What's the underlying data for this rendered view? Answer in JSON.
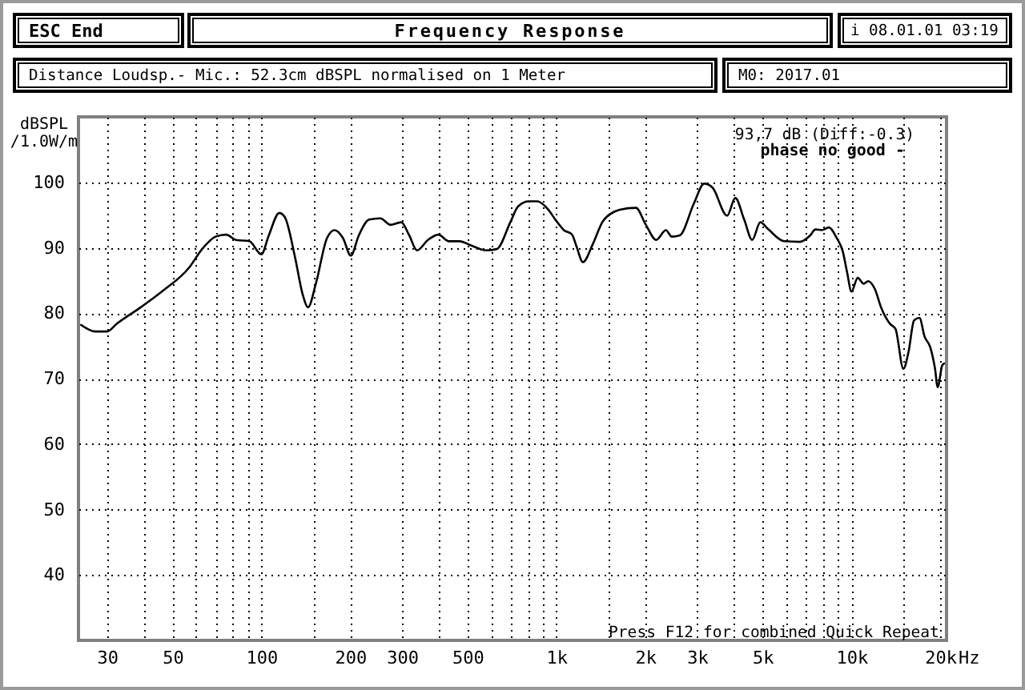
{
  "chart_data": {
    "type": "line",
    "title": "Frequency Response",
    "subtitle": "Distance Loudsp.- Mic.: 52.3cm dBSPL normalised on 1 Meter",
    "xlabel": "Hz",
    "ylabel": "dBSPL\n/1.0W/m",
    "annotations": [
      "ESC End",
      "i 08.01.01 03:19",
      "M0: 2017.01",
      "93,7 dB (Diff:-0.3)",
      "phase no good -",
      "Press F12 for combined Quick Repeat"
    ],
    "x": [
      24.5,
      27.4,
      30,
      32.4,
      39,
      46,
      57,
      63,
      70,
      76,
      82,
      91,
      100,
      106,
      115,
      120,
      130,
      138,
      144,
      153,
      167,
      177,
      189,
      201,
      214,
      232,
      253,
      274,
      298,
      317,
      337,
      367,
      398,
      432,
      470,
      511,
      578,
      628,
      698,
      741,
      806,
      859,
      936,
      992,
      1060,
      1130,
      1170,
      1230,
      1330,
      1440,
      1640,
      1860,
      2010,
      2180,
      2350,
      2460,
      2620,
      2920,
      3170,
      3380,
      3790,
      4040,
      4330,
      4610,
      4910,
      5230,
      5910,
      6680,
      7250,
      7550,
      7930,
      8390,
      8910,
      9350,
      9670,
      10000,
      10500,
      11000,
      11400,
      12000,
      12600,
      13500,
      14100,
      15000,
      15600,
      16300,
      17000,
      17700,
      18500,
      19200,
      19600,
      20300,
      20600
    ],
    "series": [
      {
        "color": "#000000",
        "values": [
          78.2,
          77.2,
          77.2,
          78.4,
          80.9,
          83.3,
          87.0,
          89.8,
          91.7,
          92.0,
          91.2,
          91.0,
          89.0,
          91.9,
          95.3,
          94.7,
          88.6,
          82.9,
          80.9,
          84.5,
          91.5,
          92.7,
          91.5,
          88.8,
          91.9,
          94.3,
          94.5,
          93.5,
          93.9,
          91.9,
          89.6,
          91.2,
          92.0,
          91.0,
          91.0,
          90.4,
          89.6,
          89.8,
          93.9,
          96.3,
          97.1,
          97.1,
          95.9,
          94.3,
          92.7,
          92.0,
          90.2,
          87.8,
          90.6,
          94.1,
          95.8,
          96.1,
          93.5,
          91.2,
          92.7,
          91.7,
          91.9,
          96.7,
          99.8,
          99.2,
          94.9,
          97.6,
          94.3,
          91.2,
          93.9,
          92.8,
          91.0,
          90.9,
          91.9,
          92.8,
          92.7,
          93.1,
          91.5,
          89.4,
          86.2,
          83.3,
          85.4,
          84.5,
          84.9,
          83.7,
          80.9,
          78.4,
          77.6,
          71.5,
          74.0,
          78.9,
          79.3,
          76.4,
          74.8,
          71.5,
          68.7,
          72.0,
          72.3
        ]
      }
    ],
    "xlim": [
      24,
      21000
    ],
    "ylim": [
      30,
      110
    ],
    "xticks": [
      30,
      {
        "value": 40,
        "label": null
      },
      50,
      {
        "value": 60,
        "label": null
      },
      {
        "value": 70,
        "label": null
      },
      {
        "value": 80,
        "label": null
      },
      {
        "value": 90,
        "label": null
      },
      100,
      {
        "value": 150,
        "label": null
      },
      200,
      300,
      {
        "value": 400,
        "label": null
      },
      500,
      {
        "value": 600,
        "label": null
      },
      {
        "value": 700,
        "label": null
      },
      {
        "value": 800,
        "label": null
      },
      {
        "value": 900,
        "label": null
      },
      {
        "value": 1000,
        "label": "1k"
      },
      {
        "value": 1500,
        "label": null
      },
      {
        "value": 2000,
        "label": "2k"
      },
      {
        "value": 3000,
        "label": "3k"
      },
      {
        "value": 4000,
        "label": null
      },
      {
        "value": 5000,
        "label": "5k"
      },
      {
        "value": 6000,
        "label": null
      },
      {
        "value": 7000,
        "label": null
      },
      {
        "value": 8000,
        "label": null
      },
      {
        "value": 9000,
        "label": null
      },
      {
        "value": 10000,
        "label": "10k"
      },
      {
        "value": 15000,
        "label": null
      },
      {
        "value": 20000,
        "label": "20k"
      }
    ],
    "yticks": [
      40,
      50,
      60,
      70,
      80,
      90,
      100
    ],
    "grid": true,
    "log": "x"
  }
}
